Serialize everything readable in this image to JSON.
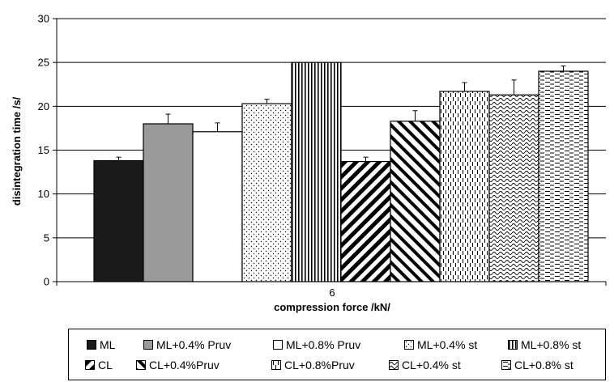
{
  "chart_data": {
    "type": "bar",
    "xlabel": "compression force /kN/",
    "ylabel": "disintegration time /s/",
    "categories": [
      "6"
    ],
    "ylim": [
      0,
      30
    ],
    "yticks": [
      "0",
      "5",
      "10",
      "15",
      "20",
      "25",
      "30"
    ],
    "grid": true,
    "legend_position": "bottom",
    "series": [
      {
        "name": "ML",
        "pattern": "solid-dark",
        "values": [
          13.8
        ],
        "error": [
          0.4
        ]
      },
      {
        "name": "ML+0.4% Pruv",
        "pattern": "solid-gray",
        "values": [
          18.0
        ],
        "error": [
          1.1
        ]
      },
      {
        "name": "ML+0.8% Pruv",
        "pattern": "white",
        "values": [
          17.1
        ],
        "error": [
          1.0
        ]
      },
      {
        "name": "ML+0.4% st",
        "pattern": "dots",
        "values": [
          20.3
        ],
        "error": [
          0.5
        ]
      },
      {
        "name": "ML+0.8% st",
        "pattern": "vertical",
        "values": [
          25.0
        ],
        "error": [
          0.0
        ]
      },
      {
        "name": "CL",
        "pattern": "diag-thick",
        "values": [
          13.7
        ],
        "error": [
          0.5
        ]
      },
      {
        "name": "CL+0.4%Pruv",
        "pattern": "diag-thick-rev",
        "values": [
          18.3
        ],
        "error": [
          1.2
        ]
      },
      {
        "name": "CL+0.8%Pruv",
        "pattern": "dashed-vertical",
        "values": [
          21.7
        ],
        "error": [
          1.0
        ]
      },
      {
        "name": "CL+0.4% st",
        "pattern": "waves",
        "values": [
          21.3
        ],
        "error": [
          1.7
        ]
      },
      {
        "name": "CL+0.8% st",
        "pattern": "dashed-horizontal",
        "values": [
          24.0
        ],
        "error": [
          0.6
        ]
      }
    ]
  }
}
